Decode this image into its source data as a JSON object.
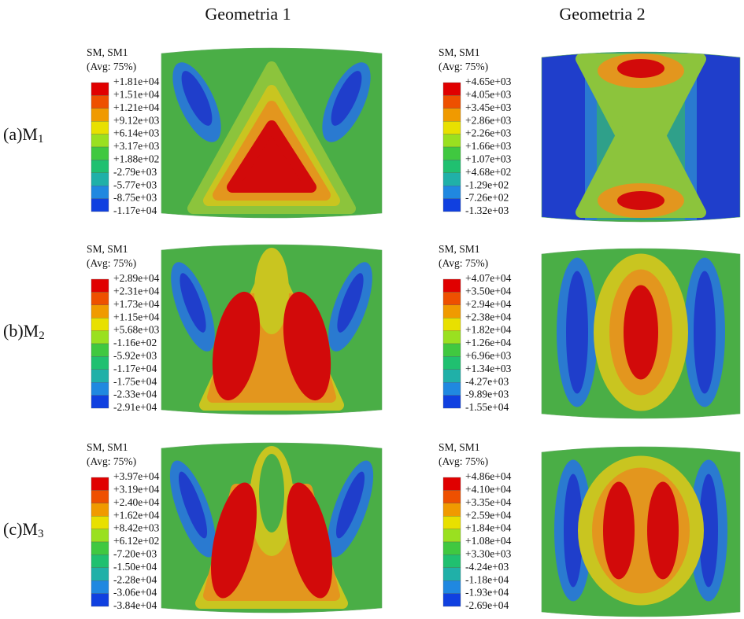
{
  "header": {
    "columns": [
      "Geometria 1",
      "Geometria 2"
    ]
  },
  "rows": [
    {
      "prefix": "(a)M",
      "sub": "1"
    },
    {
      "prefix": "(b)M",
      "sub": "2"
    },
    {
      "prefix": "(c)M",
      "sub": "3"
    }
  ],
  "panels": [
    {
      "title": "SM, SM1",
      "subtitle": "(Avg: 75%)",
      "labels": [
        "+1.81e+04",
        "+1.51e+04",
        "+1.21e+04",
        "+9.12e+03",
        "+6.14e+03",
        "+3.17e+03",
        "+1.88e+02",
        "-2.79e+03",
        "-5.77e+03",
        "-8.75e+03",
        "-1.17e+04"
      ]
    },
    {
      "title": "SM, SM1",
      "subtitle": "(Avg: 75%)",
      "labels": [
        "+4.65e+03",
        "+4.05e+03",
        "+3.45e+03",
        "+2.86e+03",
        "+2.26e+03",
        "+1.66e+03",
        "+1.07e+03",
        "+4.68e+02",
        "-1.29e+02",
        "-7.26e+02",
        "-1.32e+03"
      ]
    },
    {
      "title": "SM, SM1",
      "subtitle": "(Avg: 75%)",
      "labels": [
        "+2.89e+04",
        "+2.31e+04",
        "+1.73e+04",
        "+1.15e+04",
        "+5.68e+03",
        "-1.16e+02",
        "-5.92e+03",
        "-1.17e+04",
        "-1.75e+04",
        "-2.33e+04",
        "-2.91e+04"
      ]
    },
    {
      "title": "SM, SM1",
      "subtitle": "(Avg: 75%)",
      "labels": [
        "+4.07e+04",
        "+3.50e+04",
        "+2.94e+04",
        "+2.38e+04",
        "+1.82e+04",
        "+1.26e+04",
        "+6.96e+03",
        "+1.34e+03",
        "-4.27e+03",
        "-9.89e+03",
        "-1.55e+04"
      ]
    },
    {
      "title": "SM, SM1",
      "subtitle": "(Avg: 75%)",
      "labels": [
        "+3.97e+04",
        "+3.19e+04",
        "+2.40e+04",
        "+1.62e+04",
        "+8.42e+03",
        "+6.12e+02",
        "-7.20e+03",
        "-1.50e+04",
        "-2.28e+04",
        "-3.06e+04",
        "-3.84e+04"
      ]
    },
    {
      "title": "SM, SM1",
      "subtitle": "(Avg: 75%)",
      "labels": [
        "+4.86e+04",
        "+4.10e+04",
        "+3.35e+04",
        "+2.59e+04",
        "+1.84e+04",
        "+1.08e+04",
        "+3.30e+03",
        "-4.24e+03",
        "-1.18e+04",
        "-1.93e+04",
        "-2.69e+04"
      ]
    }
  ]
}
